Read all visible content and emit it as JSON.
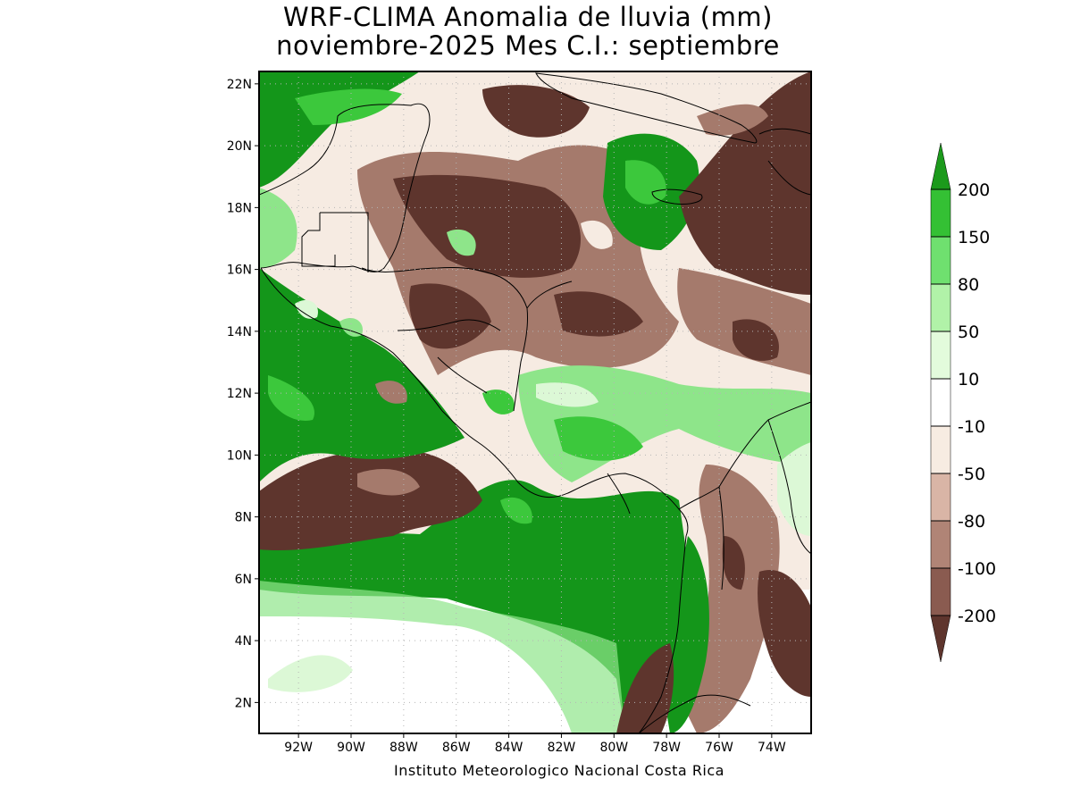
{
  "title": {
    "line1": "WRF-CLIMA Anomalia de lluvia (mm)",
    "line2": "noviembre-2025 Mes C.I.: septiembre"
  },
  "credit": "Instituto Meteorologico Nacional Costa Rica",
  "axes": {
    "lat_labels": [
      "22N",
      "20N",
      "18N",
      "16N",
      "14N",
      "12N",
      "10N",
      "8N",
      "6N",
      "4N",
      "2N"
    ],
    "lon_labels": [
      "92W",
      "90W",
      "88W",
      "86W",
      "84W",
      "82W",
      "80W",
      "78W",
      "76W",
      "74W"
    ],
    "lat_range": [
      1,
      22.4
    ],
    "lon_range": [
      -93.5,
      -72.5
    ],
    "grid": "dotted"
  },
  "colorbar": {
    "labels": [
      "200",
      "150",
      "80",
      "50",
      "10",
      "-10",
      "-50",
      "-80",
      "-100",
      "-200"
    ],
    "colors": [
      "#1c9a1c",
      "#34c034",
      "#6fe06f",
      "#b1f2a8",
      "#e3fbdc",
      "#ffffff",
      "#f7ece2",
      "#d9b5a6",
      "#b08476",
      "#8a5b50",
      "#5e352d"
    ]
  },
  "map_colors": {
    "strong_green": "#14961a",
    "green": "#3cc83c",
    "light_green": "#8ee58a",
    "pale_green": "#dcf8d6",
    "white": "#ffffff",
    "pale_brown": "#f6ebe2",
    "light_brown": "#d6b2a4",
    "brown": "#a57a6c",
    "dark_brown": "#5e352d"
  }
}
